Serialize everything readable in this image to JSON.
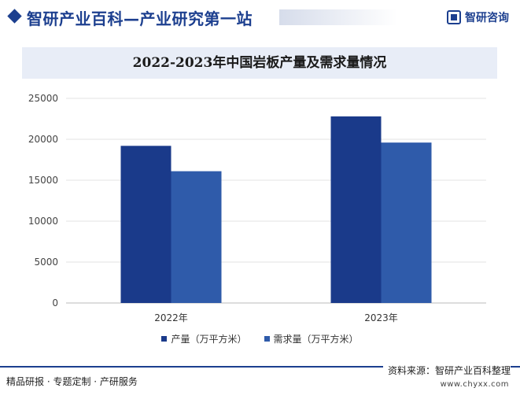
{
  "header": {
    "site_title": "智研产业百科—产业研究第一站",
    "brand_name": "智研咨询"
  },
  "colors": {
    "accent": "#1c3f8f",
    "series_production": "#1a3a8a",
    "series_demand": "#2f5baa"
  },
  "chart_data": {
    "type": "bar",
    "title": "2022-2023年中国岩板产量及需求量情况",
    "categories": [
      "2022年",
      "2023年"
    ],
    "series": [
      {
        "name": "产量（万平方米）",
        "values": [
          19200,
          22800
        ]
      },
      {
        "name": "需求量（万平方米）",
        "values": [
          16100,
          19600
        ]
      }
    ],
    "ylim": [
      0,
      25000
    ],
    "yticks": [
      0,
      5000,
      10000,
      15000,
      20000,
      25000
    ],
    "grid": true,
    "legend_position": "bottom"
  },
  "footer": {
    "left_text": "精品研报 · 专题定制 · 产研服务",
    "source": "资料来源：智研产业百科整理",
    "url": "www.chyxx.com"
  }
}
